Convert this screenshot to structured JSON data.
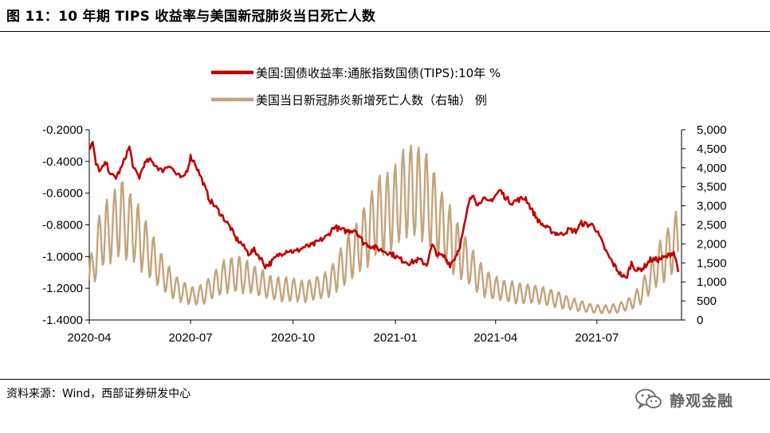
{
  "figure": {
    "title": "图 11：10 年期 TIPS 收益率与美国新冠肺炎当日死亡人数",
    "source": "资料来源：Wind，西部证券研发中心",
    "watermark": "静观金融",
    "watermark_icon": "wechat-icon"
  },
  "chart_data": {
    "type": "line",
    "legend_position": "top-center",
    "grid": false,
    "x_ticks": [
      "2020-04",
      "2020-07",
      "2020-10",
      "2021-01",
      "2021-04",
      "2021-07"
    ],
    "x_range": [
      "2020-04-01",
      "2021-09-15"
    ],
    "y_left": {
      "min": -1.4,
      "max": -0.2,
      "ticks": [
        "-0.2000",
        "-0.4000",
        "-0.6000",
        "-0.8000",
        "-1.0000",
        "-1.2000",
        "-1.4000"
      ]
    },
    "y_right": {
      "min": 0,
      "max": 5000,
      "ticks": [
        "5,000",
        "4,500",
        "4,000",
        "3,500",
        "3,000",
        "2,500",
        "2,000",
        "1,500",
        "1,000",
        "500",
        "0"
      ]
    },
    "series": [
      {
        "name": "美国:国债收益率:通胀指数国债(TIPS):10年 %",
        "axis": "left",
        "color": "#c00000",
        "points": [
          [
            "2020-04-01",
            -0.32
          ],
          [
            "2020-04-04",
            -0.28
          ],
          [
            "2020-04-07",
            -0.42
          ],
          [
            "2020-04-11",
            -0.46
          ],
          [
            "2020-04-16",
            -0.41
          ],
          [
            "2020-04-21",
            -0.49
          ],
          [
            "2020-04-25",
            -0.5
          ],
          [
            "2020-04-30",
            -0.44
          ],
          [
            "2020-05-04",
            -0.36
          ],
          [
            "2020-05-07",
            -0.31
          ],
          [
            "2020-05-11",
            -0.45
          ],
          [
            "2020-05-16",
            -0.5
          ],
          [
            "2020-05-20",
            -0.42
          ],
          [
            "2020-05-25",
            -0.39
          ],
          [
            "2020-05-30",
            -0.42
          ],
          [
            "2020-06-05",
            -0.46
          ],
          [
            "2020-06-12",
            -0.42
          ],
          [
            "2020-06-18",
            -0.48
          ],
          [
            "2020-06-24",
            -0.51
          ],
          [
            "2020-06-28",
            -0.45
          ],
          [
            "2020-07-01",
            -0.37
          ],
          [
            "2020-07-05",
            -0.41
          ],
          [
            "2020-07-12",
            -0.53
          ],
          [
            "2020-07-18",
            -0.64
          ],
          [
            "2020-07-26",
            -0.71
          ],
          [
            "2020-08-01",
            -0.77
          ],
          [
            "2020-08-06",
            -0.82
          ],
          [
            "2020-08-10",
            -0.88
          ],
          [
            "2020-08-16",
            -0.92
          ],
          [
            "2020-08-22",
            -0.98
          ],
          [
            "2020-08-27",
            -0.96
          ],
          [
            "2020-09-02",
            -1.01
          ],
          [
            "2020-09-06",
            -1.06
          ],
          [
            "2020-09-11",
            -1.04
          ],
          [
            "2020-09-18",
            -0.99
          ],
          [
            "2020-09-26",
            -0.96
          ],
          [
            "2020-10-03",
            -0.97
          ],
          [
            "2020-10-11",
            -0.94
          ],
          [
            "2020-10-18",
            -0.93
          ],
          [
            "2020-10-25",
            -0.9
          ],
          [
            "2020-11-01",
            -0.87
          ],
          [
            "2020-11-07",
            -0.81
          ],
          [
            "2020-11-12",
            -0.83
          ],
          [
            "2020-11-18",
            -0.84
          ],
          [
            "2020-11-26",
            -0.83
          ],
          [
            "2020-12-03",
            -0.91
          ],
          [
            "2020-12-12",
            -0.94
          ],
          [
            "2020-12-20",
            -0.96
          ],
          [
            "2020-12-28",
            -0.98
          ],
          [
            "2021-01-06",
            -1.02
          ],
          [
            "2021-01-14",
            -1.04
          ],
          [
            "2021-01-22",
            -1.02
          ],
          [
            "2021-01-29",
            -1.05
          ],
          [
            "2021-02-03",
            -0.93
          ],
          [
            "2021-02-08",
            -0.99
          ],
          [
            "2021-02-14",
            -1.0
          ],
          [
            "2021-02-19",
            -1.05
          ],
          [
            "2021-02-24",
            -1.0
          ],
          [
            "2021-02-28",
            -0.93
          ],
          [
            "2021-03-03",
            -0.84
          ],
          [
            "2021-03-08",
            -0.66
          ],
          [
            "2021-03-12",
            -0.6
          ],
          [
            "2021-03-16",
            -0.68
          ],
          [
            "2021-03-20",
            -0.63
          ],
          [
            "2021-03-25",
            -0.66
          ],
          [
            "2021-03-30",
            -0.63
          ],
          [
            "2021-04-05",
            -0.58
          ],
          [
            "2021-04-09",
            -0.62
          ],
          [
            "2021-04-15",
            -0.66
          ],
          [
            "2021-04-22",
            -0.64
          ],
          [
            "2021-04-28",
            -0.63
          ],
          [
            "2021-05-03",
            -0.7
          ],
          [
            "2021-05-10",
            -0.78
          ],
          [
            "2021-05-17",
            -0.82
          ],
          [
            "2021-05-24",
            -0.85
          ],
          [
            "2021-05-30",
            -0.86
          ],
          [
            "2021-06-06",
            -0.83
          ],
          [
            "2021-06-12",
            -0.84
          ],
          [
            "2021-06-17",
            -0.79
          ],
          [
            "2021-06-23",
            -0.8
          ],
          [
            "2021-06-28",
            -0.8
          ],
          [
            "2021-07-03",
            -0.87
          ],
          [
            "2021-07-10",
            -0.98
          ],
          [
            "2021-07-16",
            -1.05
          ],
          [
            "2021-07-22",
            -1.11
          ],
          [
            "2021-07-27",
            -1.14
          ],
          [
            "2021-08-01",
            -1.04
          ],
          [
            "2021-08-06",
            -1.09
          ],
          [
            "2021-08-12",
            -1.07
          ],
          [
            "2021-08-18",
            -1.02
          ],
          [
            "2021-08-25",
            -1.02
          ],
          [
            "2021-09-02",
            -1.0
          ],
          [
            "2021-09-08",
            -0.97
          ],
          [
            "2021-09-12",
            -1.08
          ]
        ]
      },
      {
        "name": "美国当日新冠肺炎新增死亡人数（右轴） 例",
        "axis": "right",
        "color": "#c4a47c",
        "points": [
          [
            "2020-04-01",
            1100
          ],
          [
            "2020-04-07",
            1700
          ],
          [
            "2020-04-12",
            2200
          ],
          [
            "2020-04-18",
            2300
          ],
          [
            "2020-04-24",
            2500
          ],
          [
            "2020-04-30",
            2700
          ],
          [
            "2020-05-06",
            2500
          ],
          [
            "2020-05-13",
            2300
          ],
          [
            "2020-05-20",
            2000
          ],
          [
            "2020-05-27",
            1700
          ],
          [
            "2020-06-04",
            1300
          ],
          [
            "2020-06-12",
            1000
          ],
          [
            "2020-06-20",
            800
          ],
          [
            "2020-06-28",
            700
          ],
          [
            "2020-07-05",
            600
          ],
          [
            "2020-07-13",
            700
          ],
          [
            "2020-07-21",
            900
          ],
          [
            "2020-07-29",
            1100
          ],
          [
            "2020-08-06",
            1200
          ],
          [
            "2020-08-14",
            1200
          ],
          [
            "2020-08-22",
            1100
          ],
          [
            "2020-08-30",
            1000
          ],
          [
            "2020-09-07",
            900
          ],
          [
            "2020-09-15",
            800
          ],
          [
            "2020-09-23",
            800
          ],
          [
            "2020-10-01",
            800
          ],
          [
            "2020-10-10",
            750
          ],
          [
            "2020-10-19",
            800
          ],
          [
            "2020-10-28",
            900
          ],
          [
            "2020-11-06",
            1100
          ],
          [
            "2020-11-14",
            1400
          ],
          [
            "2020-11-22",
            1700
          ],
          [
            "2020-11-30",
            2000
          ],
          [
            "2020-12-08",
            2400
          ],
          [
            "2020-12-16",
            2700
          ],
          [
            "2020-12-24",
            2800
          ],
          [
            "2021-01-01",
            2900
          ],
          [
            "2021-01-08",
            3300
          ],
          [
            "2021-01-15",
            3400
          ],
          [
            "2021-01-22",
            3300
          ],
          [
            "2021-01-29",
            3200
          ],
          [
            "2021-02-06",
            2800
          ],
          [
            "2021-02-14",
            2400
          ],
          [
            "2021-02-22",
            2000
          ],
          [
            "2021-03-02",
            1700
          ],
          [
            "2021-03-10",
            1400
          ],
          [
            "2021-03-18",
            1100
          ],
          [
            "2021-03-26",
            900
          ],
          [
            "2021-04-03",
            800
          ],
          [
            "2021-04-12",
            750
          ],
          [
            "2021-04-21",
            700
          ],
          [
            "2021-04-30",
            700
          ],
          [
            "2021-05-09",
            650
          ],
          [
            "2021-05-18",
            600
          ],
          [
            "2021-05-27",
            550
          ],
          [
            "2021-06-05",
            450
          ],
          [
            "2021-06-14",
            380
          ],
          [
            "2021-06-23",
            320
          ],
          [
            "2021-07-02",
            280
          ],
          [
            "2021-07-12",
            280
          ],
          [
            "2021-07-22",
            330
          ],
          [
            "2021-08-01",
            450
          ],
          [
            "2021-08-10",
            700
          ],
          [
            "2021-08-18",
            1100
          ],
          [
            "2021-08-26",
            1500
          ],
          [
            "2021-09-03",
            1800
          ],
          [
            "2021-09-08",
            2000
          ],
          [
            "2021-09-12",
            2200
          ]
        ]
      }
    ]
  }
}
